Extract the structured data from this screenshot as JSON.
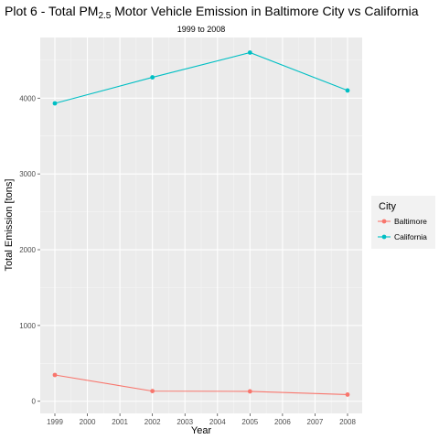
{
  "chart_data": {
    "type": "line",
    "title": "Plot 6 - Total PM2.5 Motor Vehicle Emission in Baltimore City vs California",
    "title_parts": {
      "pre": "Plot 6 - Total PM",
      "sub": "2.5",
      "post": " Motor Vehicle Emission in Baltimore City vs California"
    },
    "subtitle": "1999 to 2008",
    "xlabel": "Year",
    "ylabel": "Total Emission [tons]",
    "x_ticks": [
      1999,
      2000,
      2001,
      2002,
      2003,
      2004,
      2005,
      2006,
      2007,
      2008
    ],
    "y_ticks": [
      0,
      1000,
      2000,
      3000,
      4000
    ],
    "xlim": [
      1998.55,
      2008.45
    ],
    "ylim": [
      -160,
      4800
    ],
    "grid": true,
    "legend_title": "City",
    "legend_position": "right",
    "series": [
      {
        "name": "Baltimore",
        "color": "#F8766D",
        "x": [
          1999,
          2002,
          2005,
          2008
        ],
        "values": [
          346.8,
          134.3,
          130.4,
          88.3
        ]
      },
      {
        "name": "California",
        "color": "#00BFC4",
        "x": [
          1999,
          2002,
          2005,
          2008
        ],
        "values": [
          3931,
          4274,
          4601,
          4101
        ]
      }
    ]
  }
}
